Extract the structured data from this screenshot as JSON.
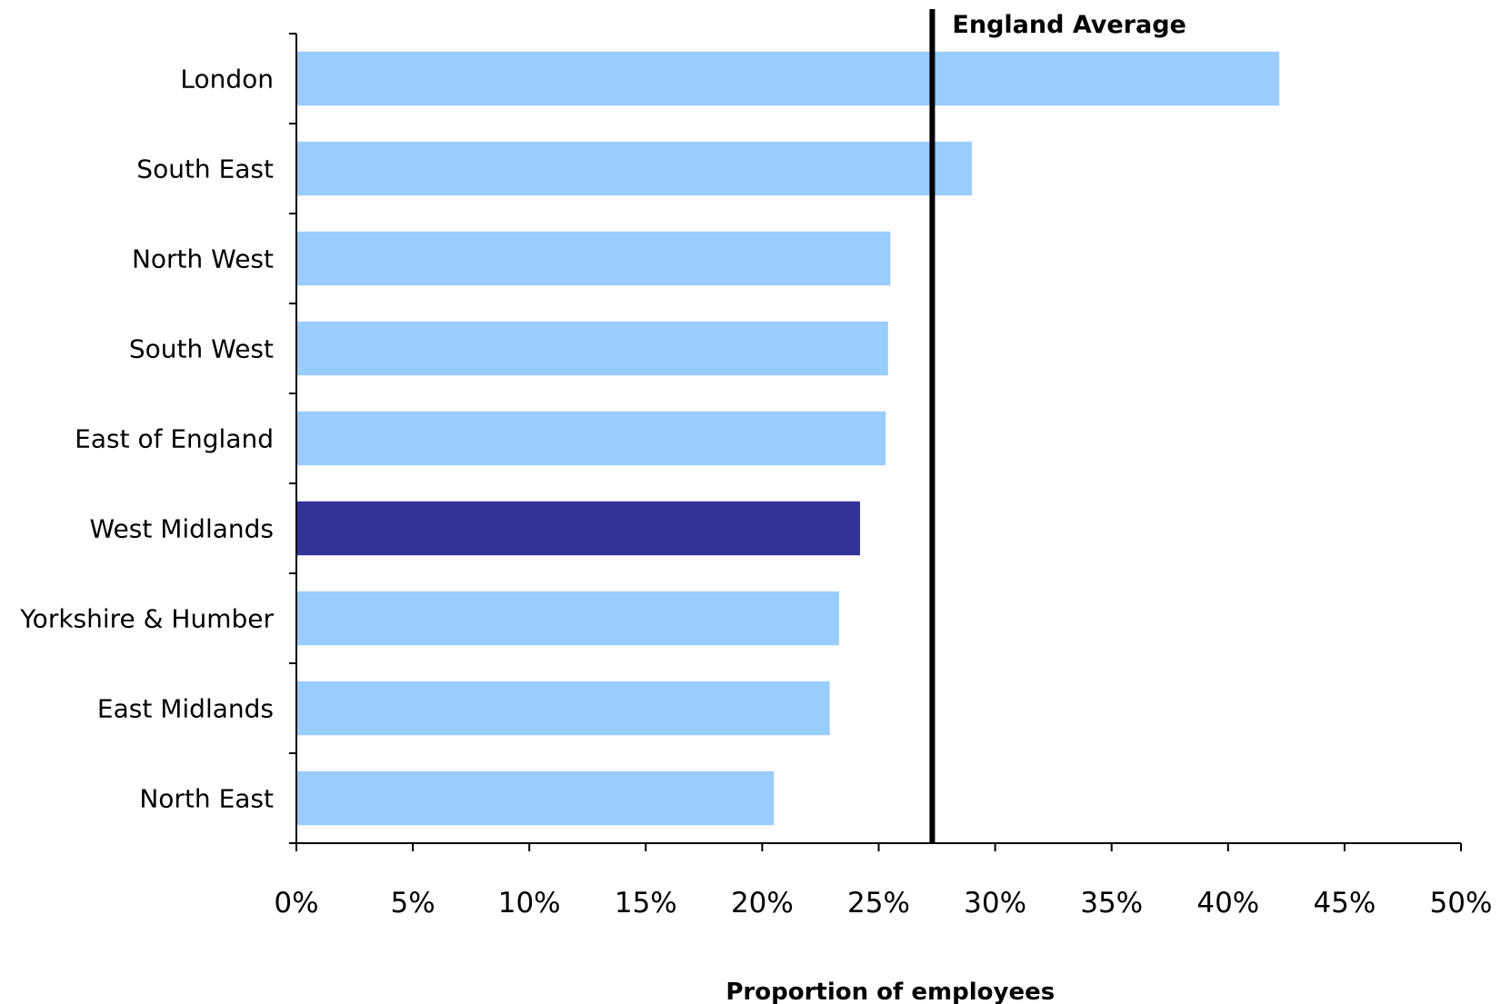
{
  "chart_data": {
    "type": "bar",
    "orientation": "horizontal",
    "categories": [
      "London",
      "South East",
      "North West",
      "South West",
      "East of England",
      "West Midlands",
      "Yorkshire & Humber",
      "East Midlands",
      "North East"
    ],
    "values": [
      42.2,
      29.0,
      25.5,
      25.4,
      25.3,
      24.2,
      23.3,
      22.9,
      20.5
    ],
    "highlight_category": "West Midlands",
    "colors": {
      "bar": "#99ccff",
      "highlight": "#333399",
      "reference_line": "#000000",
      "axis": "#000000"
    },
    "reference_line": {
      "label": "England Average",
      "value": 27.3
    },
    "title": "",
    "xlabel": "Proportion of employees",
    "ylabel": "",
    "xlim": [
      0,
      50
    ],
    "x_ticks": [
      0,
      5,
      10,
      15,
      20,
      25,
      30,
      35,
      40,
      45,
      50
    ],
    "x_tick_labels": [
      "0%",
      "5%",
      "10%",
      "15%",
      "20%",
      "25%",
      "30%",
      "35%",
      "40%",
      "45%",
      "50%"
    ],
    "grid": false,
    "legend": "none"
  }
}
